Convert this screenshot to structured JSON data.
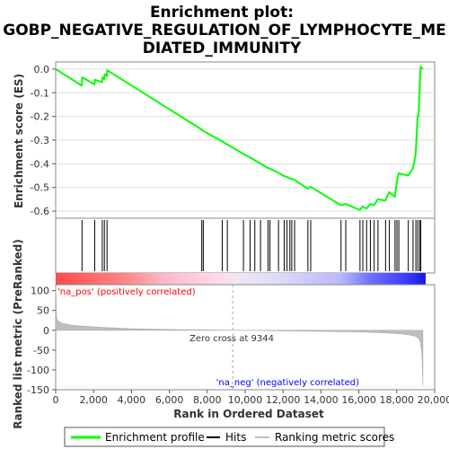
{
  "chart_data": {
    "type": "line",
    "title_lines": [
      "Enrichment plot:",
      "GOBP_NEGATIVE_REGULATION_OF_LYMPHOCYTE_ME",
      "DIATED_IMMUNITY"
    ],
    "xlabel": "Rank in Ordered Dataset",
    "es_ylabel": "Enrichment score (ES)",
    "metric_ylabel_lines": [
      "Ranked list metric (PreRanked)"
    ],
    "xlim": [
      0,
      20000
    ],
    "x_ticks": [
      0,
      2000,
      4000,
      6000,
      8000,
      10000,
      12000,
      14000,
      16000,
      18000,
      20000
    ],
    "x_tick_labels": [
      "0",
      "2,000",
      "4,000",
      "6,000",
      "8,000",
      "10,000",
      "12,000",
      "14,000",
      "16,000",
      "18,000",
      "20,000"
    ],
    "es_ylim": [
      -0.63,
      0.03
    ],
    "es_ticks": [
      0.0,
      -0.1,
      -0.2,
      -0.3,
      -0.4,
      -0.5,
      -0.6
    ],
    "es_tick_labels": [
      "0.0",
      "-0.1",
      "-0.2",
      "-0.3",
      "-0.4",
      "-0.5",
      "-0.6"
    ],
    "metric_ylim": [
      -150,
      115
    ],
    "metric_ticks": [
      100,
      50,
      0,
      -50,
      -100,
      -150
    ],
    "metric_tick_labels": [
      "100",
      "50",
      "0",
      "-50",
      "-100",
      "-150"
    ],
    "dataset_size": 19380,
    "series": [
      {
        "name": "Enrichment profile",
        "color": "#00ff00",
        "x": [
          0,
          1380,
          1400,
          2050,
          2070,
          2450,
          2470,
          2560,
          2580,
          2700,
          2720,
          7700,
          7720,
          7800,
          8780,
          9050,
          9900,
          10250,
          10500,
          10800,
          11200,
          11300,
          11750,
          12050,
          12200,
          12350,
          12450,
          12600,
          13300,
          13450,
          15050,
          15300,
          16050,
          16200,
          16400,
          16600,
          16800,
          17000,
          17400,
          17600,
          17900,
          18000,
          18100,
          18600,
          18850,
          19000,
          19050,
          19100,
          19150,
          19200,
          19260,
          19380
        ],
        "y": [
          0.0,
          -0.07,
          -0.035,
          -0.065,
          -0.045,
          -0.055,
          -0.035,
          -0.042,
          -0.022,
          -0.03,
          -0.005,
          -0.255,
          -0.258,
          -0.262,
          -0.305,
          -0.318,
          -0.358,
          -0.373,
          -0.385,
          -0.399,
          -0.418,
          -0.42,
          -0.438,
          -0.452,
          -0.455,
          -0.462,
          -0.463,
          -0.468,
          -0.505,
          -0.497,
          -0.575,
          -0.57,
          -0.595,
          -0.58,
          -0.59,
          -0.57,
          -0.575,
          -0.55,
          -0.555,
          -0.52,
          -0.54,
          -0.48,
          -0.44,
          -0.45,
          -0.42,
          -0.36,
          -0.28,
          -0.2,
          -0.2,
          -0.1,
          0.01,
          0.0
        ]
      },
      {
        "name": "Hits",
        "color": "#000000",
        "hits": [
          1390,
          2060,
          2460,
          2570,
          2710,
          7710,
          7790,
          8790,
          9060,
          9910,
          10260,
          10510,
          10810,
          11210,
          11310,
          11760,
          12060,
          12210,
          12360,
          12460,
          12610,
          13310,
          13460,
          15060,
          15310,
          16060,
          16210,
          16410,
          16610,
          16810,
          17010,
          17410,
          17610,
          17910,
          18010,
          18110,
          18610,
          18860,
          19010,
          19110,
          19210,
          19270
        ]
      },
      {
        "name": "Ranking metric scores",
        "color": "#bebebe",
        "x": [
          0,
          50,
          150,
          400,
          800,
          1500,
          2500,
          4000,
          6000,
          8000,
          9344,
          11000,
          13000,
          15000,
          16500,
          17500,
          18200,
          18700,
          19000,
          19150,
          19250,
          19320,
          19360,
          19380
        ],
        "values": [
          112,
          30,
          22,
          17,
          13,
          10,
          7,
          4,
          2,
          0.8,
          0,
          -0.8,
          -2,
          -3.5,
          -5,
          -7,
          -9,
          -12,
          -15,
          -20,
          -30,
          -55,
          -100,
          -140
        ]
      }
    ],
    "zero_cross_label": "Zero cross at 9344",
    "zero_cross_x": 9344,
    "pos_label": "'na_pos' (positively correlated)",
    "neg_label": "'na_neg' (negatively correlated)",
    "pos_color": "#ff0000",
    "neg_color": "#0000ff"
  }
}
